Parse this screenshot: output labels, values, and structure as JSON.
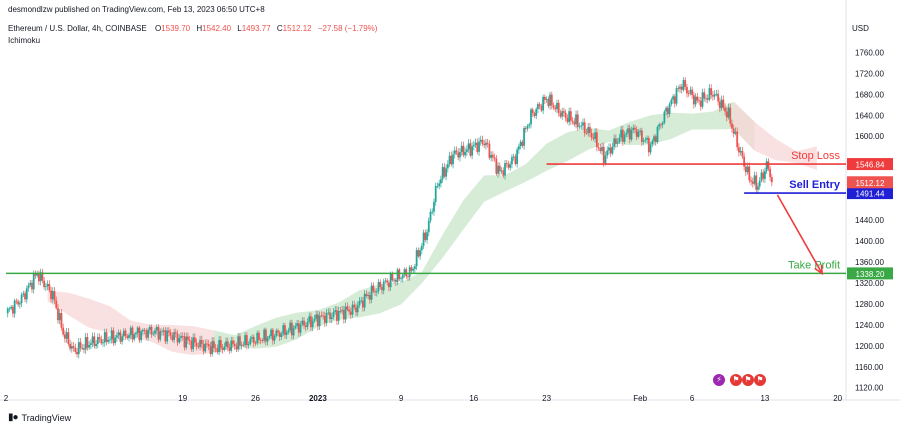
{
  "header": {
    "published": "desmondlzw published on TradingView.com, Feb 13, 2023 06:50 UTC+8",
    "symbol": "Ethereum / U.S. Dollar, 4h, COINBASE",
    "o_label": "O",
    "o_value": "1539.70",
    "h_label": "H",
    "h_value": "1542.40",
    "l_label": "L",
    "l_value": "1493.77",
    "c_label": "C",
    "c_value": "1512.12",
    "change": "−27.58 (−1.79%)",
    "indicator": "Ichimoku"
  },
  "currency": "USD",
  "footer": {
    "brand": "TradingView"
  },
  "icons": [
    "lightning-icon",
    "flag-icon",
    "flag-icon",
    "flag-icon"
  ],
  "chart_data": {
    "type": "candlestick",
    "title": "Ethereum / U.S. Dollar, 4h, COINBASE",
    "ylim": [
      1108,
      1776
    ],
    "yticks": [
      "1760.00",
      "1720.00",
      "1680.00",
      "1640.00",
      "1600.00",
      "1560.00",
      "1520.00",
      "1480.00",
      "1440.00",
      "1400.00",
      "1360.00",
      "1320.00",
      "1280.00",
      "1240.00",
      "1200.00",
      "1160.00",
      "1120.00"
    ],
    "xticks": [
      {
        "label": "2",
        "day": 0
      },
      {
        "label": "19",
        "day": 17
      },
      {
        "label": "26",
        "day": 24
      },
      {
        "label": "2023",
        "day": 30
      },
      {
        "label": "9",
        "day": 38
      },
      {
        "label": "16",
        "day": 45
      },
      {
        "label": "23",
        "day": 52
      },
      {
        "label": "Feb",
        "day": 61
      },
      {
        "label": "6",
        "day": 66
      },
      {
        "label": "13",
        "day": 73
      },
      {
        "label": "20",
        "day": 80
      }
    ],
    "price_path": [
      [
        0,
        1262
      ],
      [
        1.5,
        1290
      ],
      [
        3,
        1338
      ],
      [
        4.5,
        1296
      ],
      [
        5.5,
        1225
      ],
      [
        6.5,
        1190
      ],
      [
        8,
        1205
      ],
      [
        10,
        1215
      ],
      [
        12,
        1222
      ],
      [
        14,
        1228
      ],
      [
        16,
        1220
      ],
      [
        18,
        1205
      ],
      [
        20,
        1196
      ],
      [
        22,
        1202
      ],
      [
        24,
        1212
      ],
      [
        26,
        1222
      ],
      [
        28,
        1236
      ],
      [
        30,
        1252
      ],
      [
        32,
        1262
      ],
      [
        33.5,
        1270
      ],
      [
        35,
        1300
      ],
      [
        36.5,
        1320
      ],
      [
        37.5,
        1330
      ],
      [
        39,
        1342
      ],
      [
        40.5,
        1420
      ],
      [
        41.5,
        1508
      ],
      [
        43,
        1565
      ],
      [
        44.5,
        1575
      ],
      [
        46,
        1590
      ],
      [
        47.5,
        1530
      ],
      [
        49,
        1560
      ],
      [
        50.5,
        1640
      ],
      [
        52,
        1672
      ],
      [
        53.5,
        1642
      ],
      [
        55,
        1625
      ],
      [
        56.5,
        1600
      ],
      [
        57.5,
        1560
      ],
      [
        59,
        1598
      ],
      [
        60.5,
        1612
      ],
      [
        62,
        1580
      ],
      [
        63.5,
        1648
      ],
      [
        65,
        1700
      ],
      [
        66.5,
        1665
      ],
      [
        68,
        1683
      ],
      [
        69.5,
        1640
      ],
      [
        70.5,
        1575
      ],
      [
        71.5,
        1520
      ],
      [
        72.3,
        1505
      ],
      [
        73.2,
        1545
      ],
      [
        73.8,
        1512
      ]
    ],
    "cloud": [
      [
        4,
        1295
      ],
      [
        6,
        1280
      ],
      [
        8,
        1262
      ],
      [
        10,
        1250
      ],
      [
        12,
        1232
      ],
      [
        14,
        1224
      ],
      [
        16,
        1214
      ],
      [
        18,
        1210
      ],
      [
        20,
        1208
      ],
      [
        22,
        1210
      ],
      [
        24,
        1216
      ],
      [
        26,
        1226
      ],
      [
        28,
        1238
      ],
      [
        30,
        1252
      ],
      [
        32,
        1266
      ],
      [
        34,
        1280
      ],
      [
        36,
        1290
      ],
      [
        38,
        1300
      ],
      [
        40,
        1330
      ],
      [
        42,
        1390
      ],
      [
        44,
        1450
      ],
      [
        46,
        1500
      ],
      [
        48,
        1510
      ],
      [
        50,
        1530
      ],
      [
        52,
        1560
      ],
      [
        54,
        1580
      ],
      [
        56,
        1595
      ],
      [
        58,
        1600
      ],
      [
        60,
        1605
      ],
      [
        62,
        1612
      ],
      [
        64,
        1620
      ],
      [
        66,
        1628
      ],
      [
        68,
        1630
      ],
      [
        70,
        1640
      ],
      [
        72,
        1600
      ],
      [
        74,
        1575
      ],
      [
        76,
        1560
      ],
      [
        78,
        1558
      ]
    ],
    "levels": [
      {
        "name": "Stop Loss",
        "value": 1546.84,
        "label": "1546.84",
        "color": "#ef3b3b",
        "start_day": 52
      },
      {
        "name": "Sell Entry",
        "value": 1491.44,
        "label": "1491.44",
        "color": "#1f1fd6",
        "start_day": 71
      },
      {
        "name": "Take Profit",
        "value": 1338.2,
        "label": "1338.20",
        "color": "#39a845",
        "start_day": 0
      }
    ],
    "last_price": {
      "value": 1512.12,
      "label": "1512.12",
      "color": "#ef5350"
    },
    "arrow": {
      "from_day": 74.2,
      "from_value": 1488,
      "to_day": 78.5,
      "to_value": 1338,
      "color": "#ef3b3b"
    },
    "colors": {
      "up": "#26a69a",
      "down": "#ef5350",
      "cloud_green": "#c8e6c9",
      "cloud_red": "#f8d7d7"
    }
  }
}
